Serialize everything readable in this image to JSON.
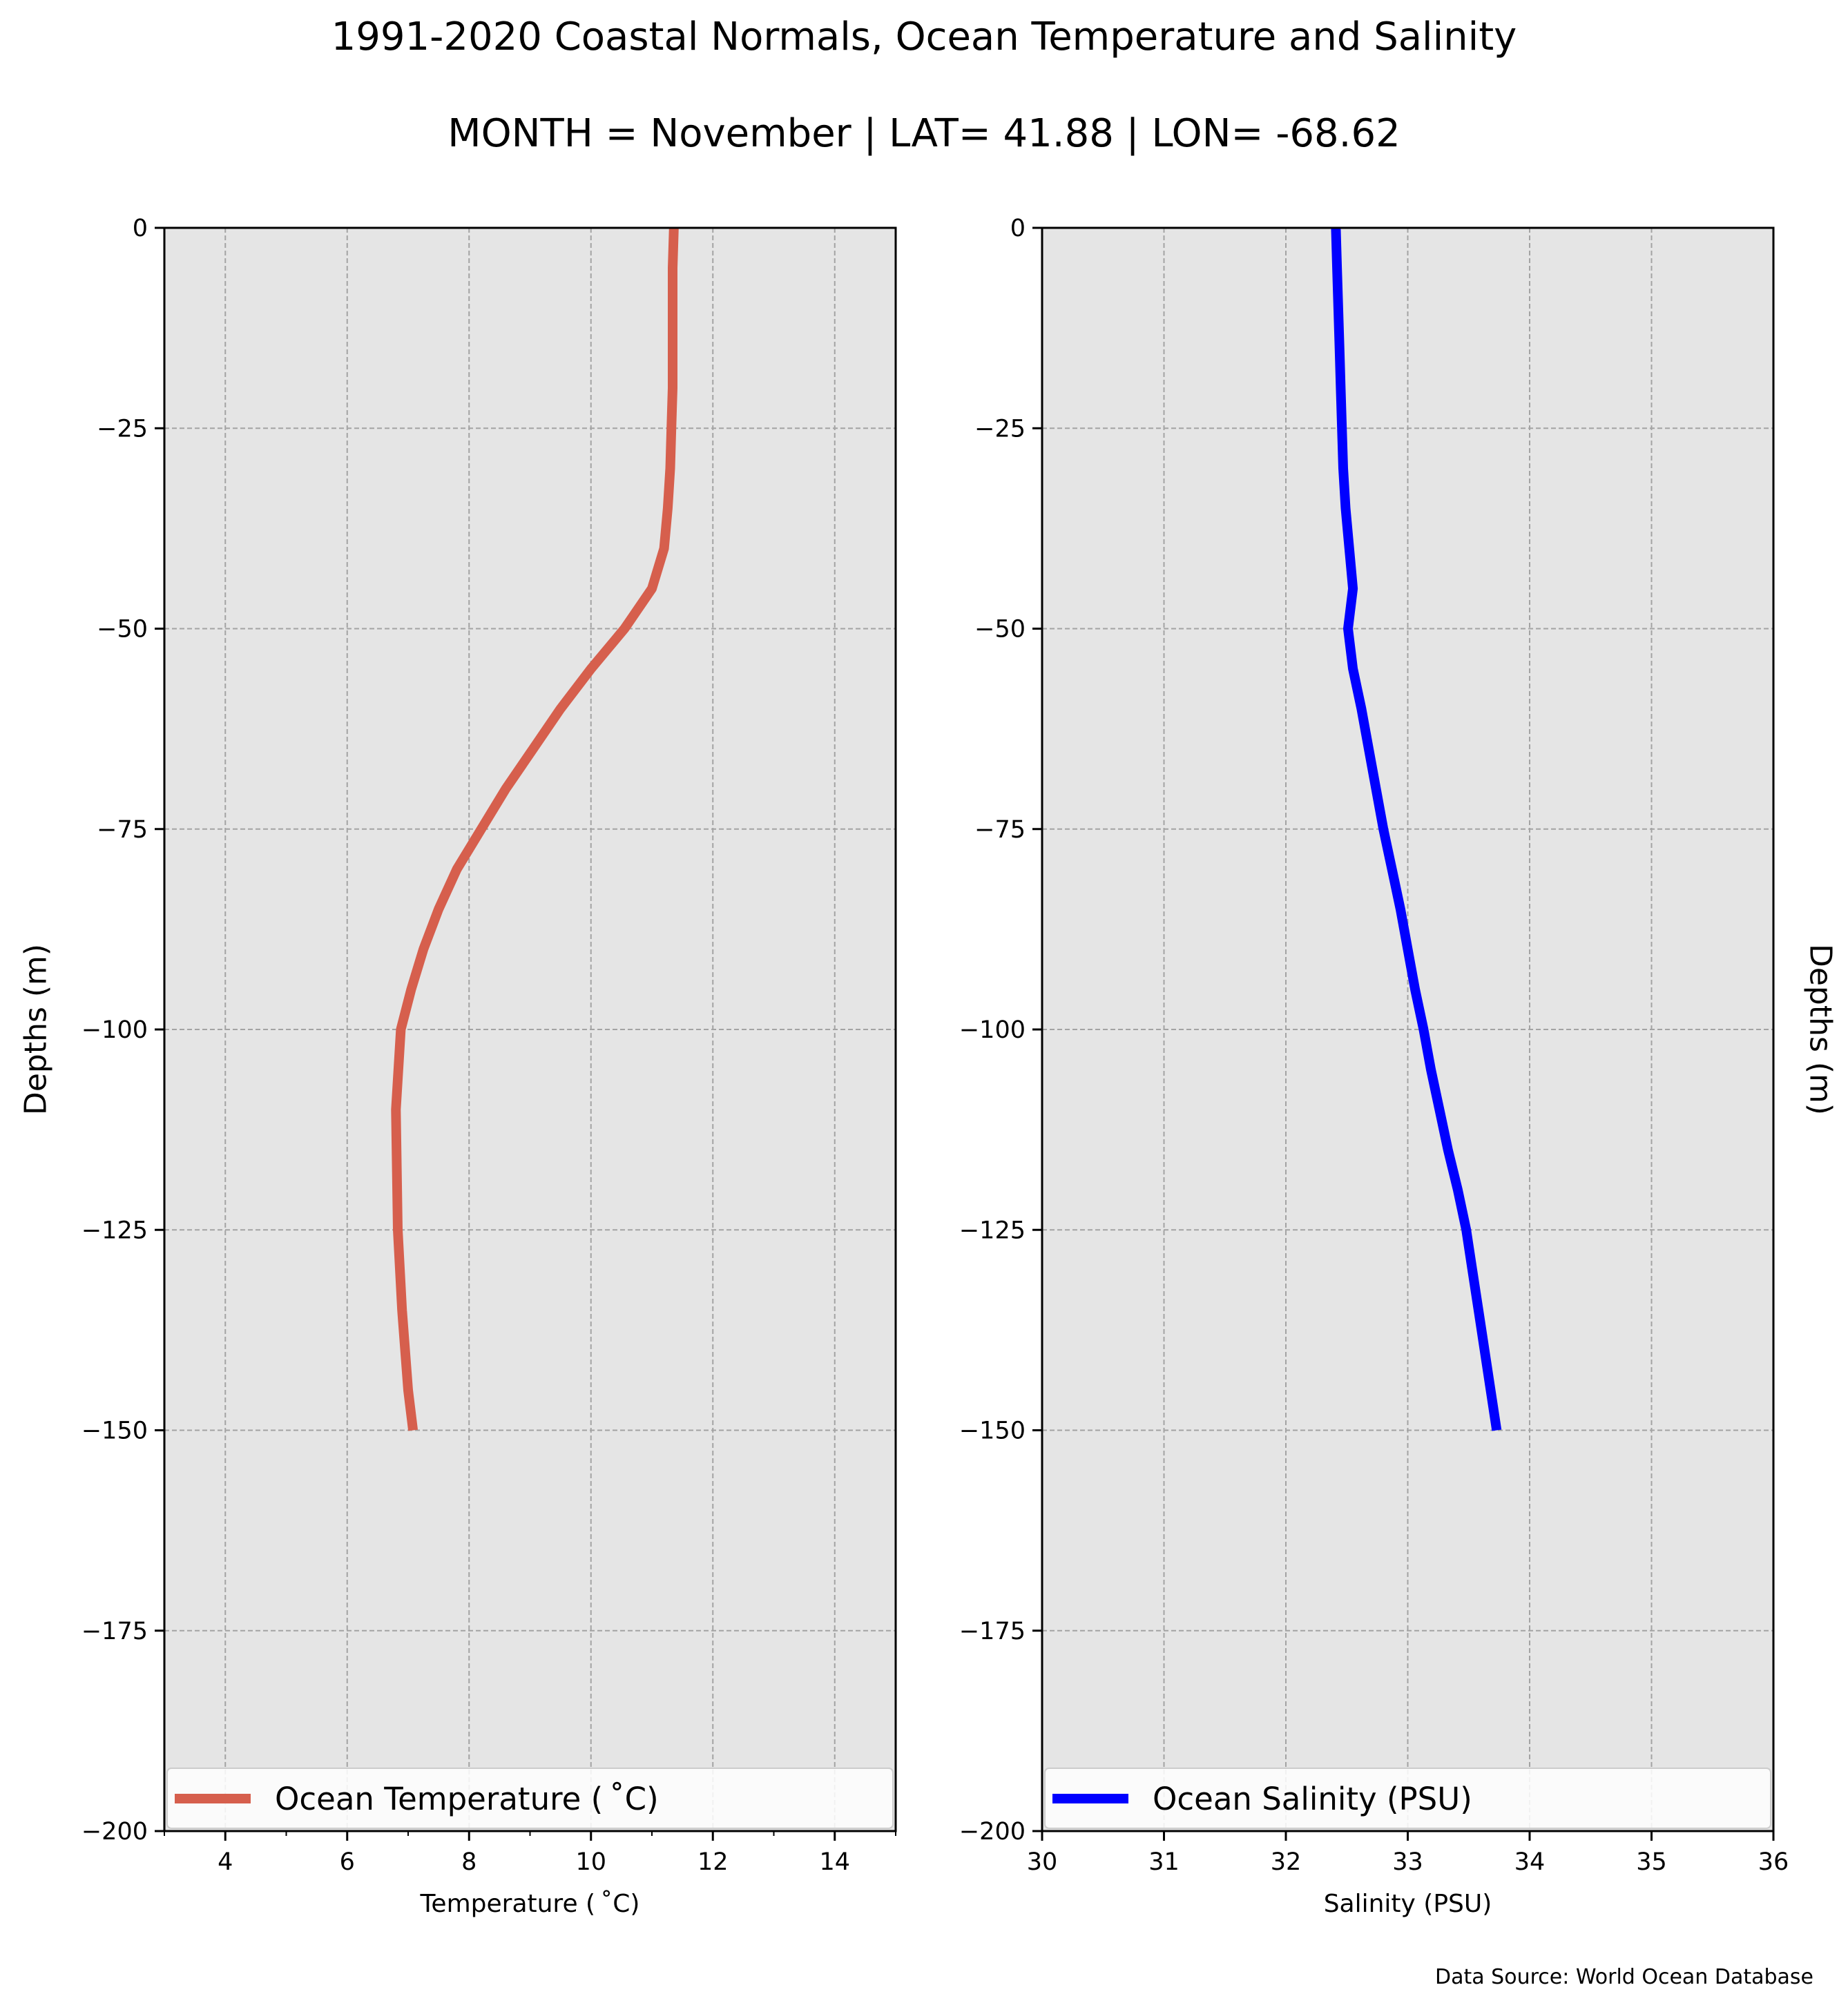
{
  "title": "1991-2020 Coastal Normals, Ocean Temperature and Salinity",
  "subtitle": "MONTH = November | LAT= 41.88 | LON= -68.62",
  "source_note": "Data Source: World Ocean Database",
  "colors": {
    "panel_background": "#e5e5e5",
    "grid": "#a3a3a3",
    "temperature_line": "#d65f4d",
    "salinity_line": "#0000ff"
  },
  "chart_data": [
    {
      "type": "line",
      "xlabel": "Temperature ($^\\circ$C)",
      "ylabel": "Depths (m)",
      "xlim": [
        3,
        15
      ],
      "ylim": [
        -200,
        0
      ],
      "xticks": [
        4,
        6,
        8,
        10,
        12,
        14
      ],
      "xtick_labels": [
        "4",
        "6",
        "8",
        "10",
        "12",
        "14"
      ],
      "yticks": [
        0,
        -25,
        -50,
        -75,
        -100,
        -125,
        -150,
        -175,
        -200
      ],
      "ytick_labels": [
        "0",
        "−25",
        "−50",
        "−75",
        "−100",
        "−125",
        "−150",
        "−175",
        "−200"
      ],
      "grid": true,
      "legend_location": "lower center",
      "series": [
        {
          "name": "Ocean Temperature ($^\\circ$C)",
          "color": "#d65f4d",
          "x": [
            11.36,
            11.34,
            11.34,
            11.34,
            11.34,
            11.32,
            11.3,
            11.26,
            11.2,
            11.0,
            10.55,
            10.0,
            9.5,
            9.05,
            8.6,
            8.2,
            7.8,
            7.5,
            7.25,
            7.05,
            6.88,
            6.8,
            6.83,
            6.9,
            7.0,
            7.08
          ],
          "y": [
            0,
            -5,
            -10,
            -15,
            -20,
            -25,
            -30,
            -35,
            -40,
            -45,
            -50,
            -55,
            -60,
            -65,
            -70,
            -75,
            -80,
            -85,
            -90,
            -95,
            -100,
            -110,
            -125,
            -135,
            -145,
            -150
          ]
        }
      ]
    },
    {
      "type": "line",
      "xlabel": "Salinity (PSU)",
      "ylabel": "Depths (m)",
      "xlim": [
        30,
        36
      ],
      "ylim": [
        -200,
        0
      ],
      "xticks": [
        30,
        31,
        32,
        33,
        34,
        35,
        36
      ],
      "xtick_labels": [
        "30",
        "31",
        "32",
        "33",
        "34",
        "35",
        "36"
      ],
      "yticks": [
        0,
        -25,
        -50,
        -75,
        -100,
        -125,
        -150,
        -175,
        -200
      ],
      "ytick_labels": [
        "0",
        "−25",
        "−50",
        "−75",
        "−100",
        "−125",
        "−150",
        "−175",
        "−200"
      ],
      "grid": true,
      "legend_location": "lower center",
      "series": [
        {
          "name": "Ocean Salinity (PSU)",
          "color": "#0000ff",
          "x": [
            32.41,
            32.42,
            32.43,
            32.44,
            32.45,
            32.46,
            32.47,
            32.49,
            32.52,
            32.55,
            32.51,
            32.55,
            32.62,
            32.68,
            32.74,
            32.8,
            32.87,
            32.94,
            33.0,
            33.06,
            33.13,
            33.19,
            33.26,
            33.33,
            33.41,
            33.48,
            33.53,
            33.58,
            33.63,
            33.68,
            33.73
          ],
          "y": [
            0,
            -5,
            -10,
            -15,
            -20,
            -25,
            -30,
            -35,
            -40,
            -45,
            -50,
            -55,
            -60,
            -65,
            -70,
            -75,
            -80,
            -85,
            -90,
            -95,
            -100,
            -105,
            -110,
            -115,
            -120,
            -125,
            -130,
            -135,
            -140,
            -145,
            -150
          ]
        }
      ]
    }
  ]
}
